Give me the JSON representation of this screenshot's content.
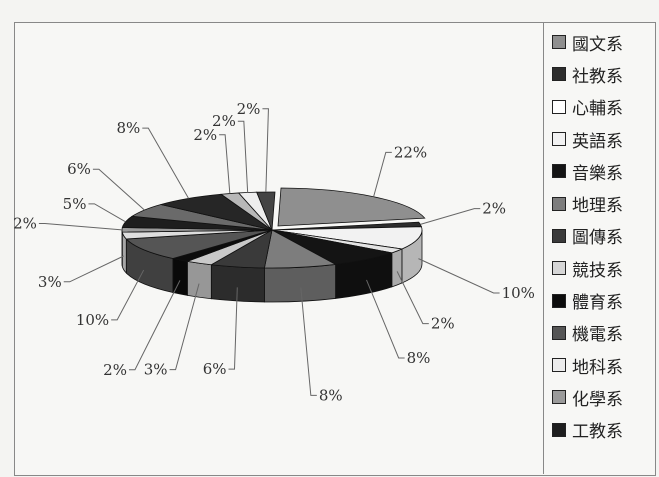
{
  "chart_data": {
    "type": "pie",
    "title": "",
    "style": "3d-exploded-slice",
    "legend_position": "right",
    "categories": [
      "國文系",
      "社教系",
      "心輔系",
      "英語系",
      "音樂系",
      "地理系",
      "圖傳系",
      "競技系",
      "體育系",
      "機電系",
      "地科系",
      "化學系",
      "工教系"
    ],
    "slices": [
      {
        "category": "國文系",
        "label": "22%",
        "value": 22
      },
      {
        "category": "社教系",
        "label": "2%",
        "value": 2
      },
      {
        "category": "心輔系",
        "label": "10%",
        "value": 10
      },
      {
        "category": "英語系",
        "label": "2%",
        "value": 2
      },
      {
        "category": "音樂系",
        "label": "8%",
        "value": 8
      },
      {
        "category": "地理系",
        "label": "8%",
        "value": 8
      },
      {
        "category": "圖傳系",
        "label": "6%",
        "value": 6
      },
      {
        "category": "競技系",
        "label": "3%",
        "value": 3
      },
      {
        "category": "體育系",
        "label": "2%",
        "value": 2
      },
      {
        "category": "機電系",
        "label": "10%",
        "value": 10
      },
      {
        "category": "地科系",
        "label": "3%",
        "value": 3
      },
      {
        "category": "化學系",
        "label": "2%",
        "value": 2
      },
      {
        "category": "工教系",
        "label": "5%",
        "value": 5
      },
      {
        "category": "",
        "label": "6%",
        "value": 6
      },
      {
        "category": "",
        "label": "8%",
        "value": 8
      },
      {
        "category": "",
        "label": "2%",
        "value": 2
      },
      {
        "category": "",
        "label": "2%",
        "value": 2
      },
      {
        "category": "",
        "label": "2%",
        "value": 2
      }
    ],
    "colors": [
      "#8f8f8f",
      "#2d2d2d",
      "#f2f2f2",
      "#e4e4e4",
      "#141414",
      "#7d7d7d",
      "#3a3a3a",
      "#c9c9c9",
      "#0c0c0c",
      "#555555",
      "#dedede",
      "#9a9a9a",
      "#1e1e1e",
      "#6a6a6a",
      "#262626",
      "#b8b8b8",
      "#eeeeee",
      "#444444"
    ],
    "legend_swatches": [
      "#8f8f8f",
      "#2d2d2d",
      "#ffffff",
      "#f2f2f2",
      "#141414",
      "#7d7d7d",
      "#3a3a3a",
      "#d6d6d6",
      "#0c0c0c",
      "#555555",
      "#ececec",
      "#9a9a9a",
      "#1e1e1e"
    ]
  }
}
